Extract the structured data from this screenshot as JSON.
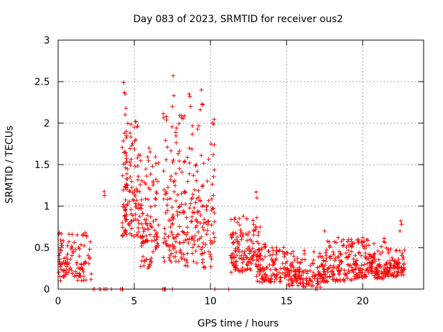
{
  "chart_data": {
    "type": "scatter",
    "title": "Day 083 of 2023, SRMTID for receiver ous2",
    "xlabel": "GPS time / hours",
    "ylabel": "SRMTID / TECUs",
    "xlim": [
      0,
      24
    ],
    "ylim": [
      0,
      3
    ],
    "xticks": [
      0,
      5,
      10,
      15,
      20
    ],
    "yticks": [
      0,
      0.5,
      1,
      1.5,
      2,
      2.5,
      3
    ],
    "grid": true,
    "marker": "+",
    "color": "#ff0000",
    "series": [
      {
        "name": "SRMTID",
        "clusters": [
          {
            "x0": 0.0,
            "x1": 2.2,
            "ymin": 0.1,
            "ymax": 0.72,
            "n": 110,
            "seed": 11
          },
          {
            "x0": 3.0,
            "x1": 3.2,
            "ymin": 1.12,
            "ymax": 1.3,
            "n": 2,
            "seed": 12
          },
          {
            "x0": 4.2,
            "x1": 5.3,
            "ymin": 0.62,
            "ymax": 2.05,
            "n": 120,
            "seed": 13
          },
          {
            "x0": 5.3,
            "x1": 6.6,
            "ymin": 0.25,
            "ymax": 1.75,
            "n": 110,
            "seed": 14
          },
          {
            "x0": 6.9,
            "x1": 8.3,
            "ymin": 0.3,
            "ymax": 2.22,
            "n": 120,
            "seed": 15
          },
          {
            "x0": 8.3,
            "x1": 10.3,
            "ymin": 0.25,
            "ymax": 2.2,
            "n": 140,
            "seed": 16
          },
          {
            "x0": 11.3,
            "x1": 13.3,
            "ymin": 0.2,
            "ymax": 0.9,
            "n": 140,
            "seed": 17
          },
          {
            "x0": 13.0,
            "x1": 15.0,
            "ymin": 0.08,
            "ymax": 0.55,
            "n": 110,
            "seed": 18
          },
          {
            "x0": 15.0,
            "x1": 17.3,
            "ymin": 0.02,
            "ymax": 0.48,
            "n": 140,
            "seed": 19
          },
          {
            "x0": 17.3,
            "x1": 19.5,
            "ymin": 0.08,
            "ymax": 0.62,
            "n": 140,
            "seed": 20
          },
          {
            "x0": 19.5,
            "x1": 21.5,
            "ymin": 0.12,
            "ymax": 0.62,
            "n": 140,
            "seed": 21
          },
          {
            "x0": 21.5,
            "x1": 22.8,
            "ymin": 0.15,
            "ymax": 0.5,
            "n": 90,
            "seed": 22
          }
        ],
        "points": [
          {
            "x": 4.3,
            "y": 2.49
          },
          {
            "x": 4.35,
            "y": 2.37
          },
          {
            "x": 4.4,
            "y": 2.35
          },
          {
            "x": 4.45,
            "y": 2.18
          },
          {
            "x": 4.4,
            "y": 2.1
          },
          {
            "x": 7.55,
            "y": 2.57
          },
          {
            "x": 7.6,
            "y": 2.33
          },
          {
            "x": 7.5,
            "y": 2.2
          },
          {
            "x": 8.6,
            "y": 2.35
          },
          {
            "x": 8.65,
            "y": 2.32
          },
          {
            "x": 8.7,
            "y": 2.2
          },
          {
            "x": 9.4,
            "y": 2.4
          },
          {
            "x": 9.45,
            "y": 2.23
          },
          {
            "x": 9.5,
            "y": 2.22
          },
          {
            "x": 5.1,
            "y": 2.02
          },
          {
            "x": 5.0,
            "y": 1.95
          },
          {
            "x": 13.0,
            "y": 1.17
          },
          {
            "x": 13.05,
            "y": 1.1
          },
          {
            "x": 22.5,
            "y": 0.82
          },
          {
            "x": 22.55,
            "y": 0.78
          },
          {
            "x": 22.45,
            "y": 0.7
          },
          {
            "x": 17.5,
            "y": 0.7
          },
          {
            "x": 20.0,
            "y": 0.62
          },
          {
            "x": 2.3,
            "y": 0.0
          },
          {
            "x": 2.4,
            "y": 0.0
          },
          {
            "x": 2.7,
            "y": 0.0
          },
          {
            "x": 2.8,
            "y": 0.0
          },
          {
            "x": 3.0,
            "y": 0.0
          },
          {
            "x": 3.1,
            "y": 0.0
          },
          {
            "x": 3.2,
            "y": 0.0
          },
          {
            "x": 3.5,
            "y": 0.0
          },
          {
            "x": 4.1,
            "y": 0.0
          },
          {
            "x": 4.2,
            "y": 0.0
          },
          {
            "x": 4.25,
            "y": 0.0
          },
          {
            "x": 6.85,
            "y": 0.0
          },
          {
            "x": 6.95,
            "y": 0.0
          },
          {
            "x": 7.0,
            "y": 0.0
          },
          {
            "x": 7.05,
            "y": 0.0
          },
          {
            "x": 7.5,
            "y": 0.0
          },
          {
            "x": 10.3,
            "y": 0.0
          },
          {
            "x": 11.2,
            "y": 0.0
          },
          {
            "x": 16.9,
            "y": 0.0
          },
          {
            "x": 17.0,
            "y": 0.0
          }
        ]
      }
    ]
  }
}
